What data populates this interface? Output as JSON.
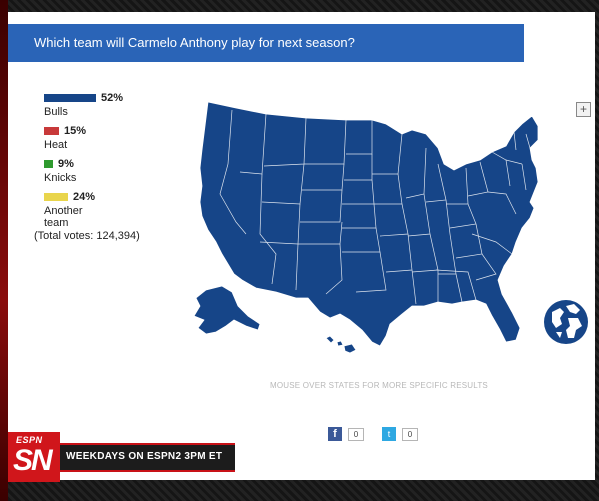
{
  "poll": {
    "question": "Which team will Carmelo Anthony play for next season?",
    "options": [
      {
        "label": "Bulls",
        "percent": "52%",
        "share": 0.52,
        "color": "#164588"
      },
      {
        "label": "Heat",
        "percent": "15%",
        "share": 0.15,
        "color": "#c8393a"
      },
      {
        "label": "Knicks",
        "percent": "9%",
        "share": 0.09,
        "color": "#2e9a2e"
      },
      {
        "label": "Another team",
        "percent": "24%",
        "share": 0.24,
        "color": "#e9d54c"
      }
    ],
    "total_votes": "(Total votes: 124,394)"
  },
  "map": {
    "fill_color": "#164588",
    "zoom_label": "+",
    "hint": "MOUSE OVER STATES FOR MORE SPECIFIC RESULTS"
  },
  "social": {
    "facebook_icon": "f",
    "facebook_count": "0",
    "twitter_icon": "t",
    "twitter_count": "0"
  },
  "branding": {
    "network": "ESPN",
    "show": "SN",
    "tagline": "WEEKDAYS ON ESPN2 3PM ET"
  }
}
